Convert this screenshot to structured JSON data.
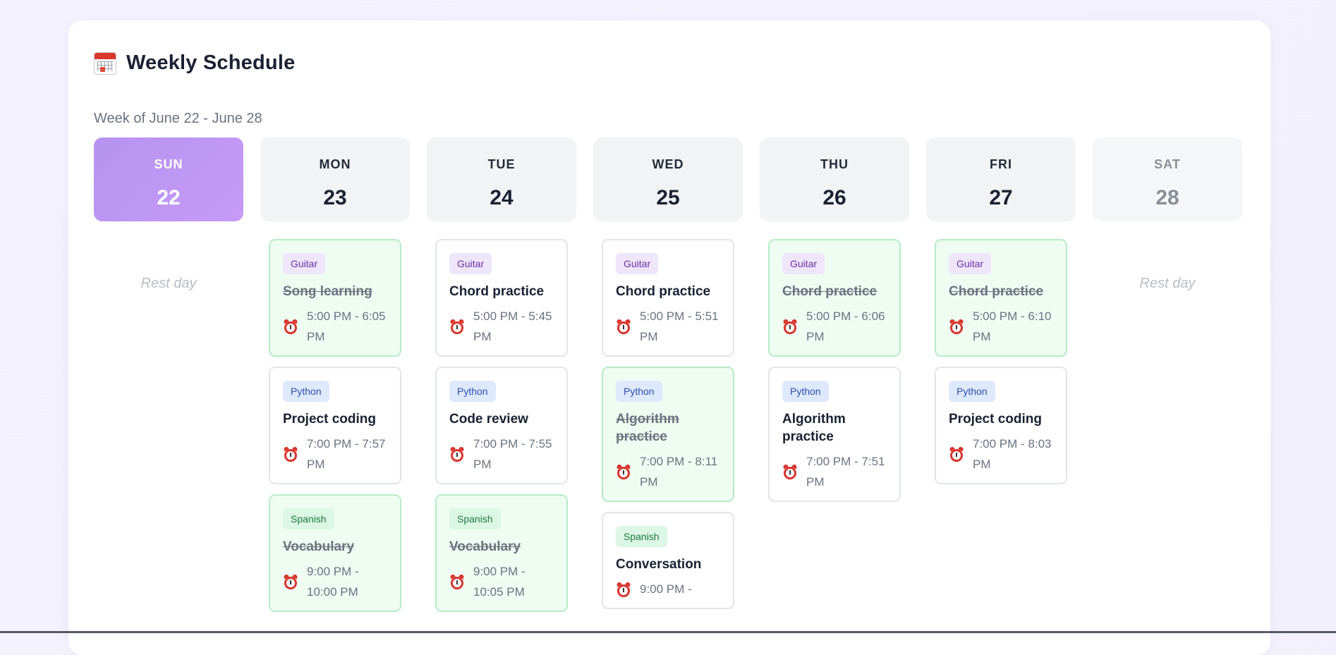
{
  "header": {
    "icon": "calendar-icon",
    "title": "Weekly Schedule",
    "subtitle": "Week of June 22 - June 28"
  },
  "days": [
    {
      "name": "SUN",
      "num": "22",
      "rest": "Rest day",
      "tasks": []
    },
    {
      "name": "MON",
      "num": "23",
      "tasks": [
        {
          "tag": "Guitar",
          "title": "Song learning",
          "time": "5:00 PM - 6:05 PM",
          "done": true
        },
        {
          "tag": "Python",
          "title": "Project coding",
          "time": "7:00 PM - 7:57 PM",
          "done": false
        },
        {
          "tag": "Spanish",
          "title": "Vocabulary",
          "time": "9:00 PM - 10:00 PM",
          "done": true
        }
      ]
    },
    {
      "name": "TUE",
      "num": "24",
      "tasks": [
        {
          "tag": "Guitar",
          "title": "Chord practice",
          "time": "5:00 PM - 5:45 PM",
          "done": false
        },
        {
          "tag": "Python",
          "title": "Code review",
          "time": "7:00 PM - 7:55 PM",
          "done": false
        },
        {
          "tag": "Spanish",
          "title": "Vocabulary",
          "time": "9:00 PM - 10:05 PM",
          "done": true
        }
      ]
    },
    {
      "name": "WED",
      "num": "25",
      "tasks": [
        {
          "tag": "Guitar",
          "title": "Chord practice",
          "time": "5:00 PM - 5:51 PM",
          "done": false
        },
        {
          "tag": "Python",
          "title": "Algorithm practice",
          "time": "7:00 PM - 8:11 PM",
          "done": true
        },
        {
          "tag": "Spanish",
          "title": "Conversation",
          "time": "9:00 PM -",
          "done": false
        }
      ]
    },
    {
      "name": "THU",
      "num": "26",
      "tasks": [
        {
          "tag": "Guitar",
          "title": "Chord practice",
          "time": "5:00 PM - 6:06 PM",
          "done": true
        },
        {
          "tag": "Python",
          "title": "Algorithm practice",
          "time": "7:00 PM - 7:51 PM",
          "done": false
        }
      ]
    },
    {
      "name": "FRI",
      "num": "27",
      "tasks": [
        {
          "tag": "Guitar",
          "title": "Chord practice",
          "time": "5:00 PM - 6:10 PM",
          "done": true
        },
        {
          "tag": "Python",
          "title": "Project coding",
          "time": "7:00 PM - 8:03 PM",
          "done": false
        }
      ]
    },
    {
      "name": "SAT",
      "num": "28",
      "rest": "Rest day",
      "tasks": []
    }
  ],
  "today_index": 0,
  "faded_index": 6,
  "colors": {
    "today_gradient_start": "#b693f0",
    "today_gradient_end": "#c79bf7",
    "done_bg": "#effcf2",
    "done_border": "#b6ecc6",
    "guitar_tag_bg": "#efe6fb",
    "python_tag_bg": "#dfe9fd",
    "spanish_tag_bg": "#dcf7e5"
  },
  "task_icon": "alarm-clock-icon"
}
